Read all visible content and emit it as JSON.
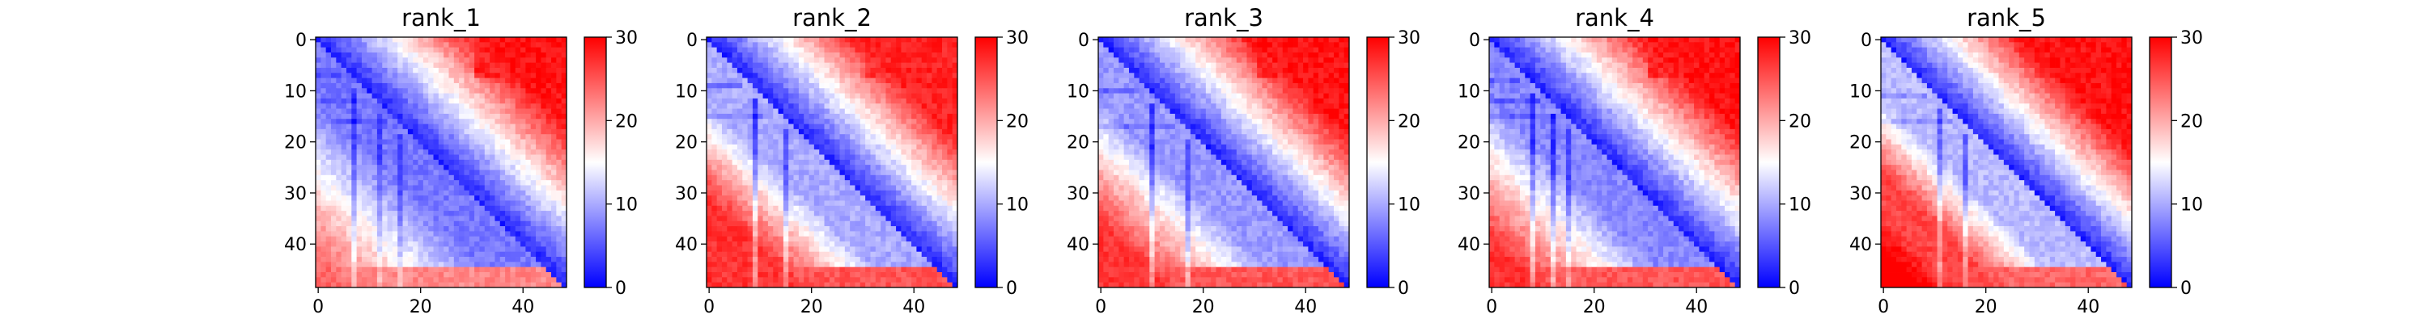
{
  "chart_data": {
    "type": "heatmap",
    "colormap": "bwr",
    "colormap_stops": [
      "#0000ff",
      "#ffffff",
      "#ff0000"
    ],
    "color_range": [
      0,
      30
    ],
    "colorbar_ticks": [
      0,
      10,
      20,
      30
    ],
    "grid": false,
    "matrix_size": 49,
    "x_ticks": [
      0,
      20,
      40
    ],
    "y_ticks": [
      0,
      10,
      20,
      30,
      40
    ],
    "panels": [
      {
        "title": "rank_1",
        "profile": {
          "near_diagonal": 2,
          "band_slope": 0.42,
          "lower_growth": 0.55,
          "lower_floor": 7,
          "upper_growth": 0.85,
          "upper_cap": 29,
          "far_corner": 24,
          "stripes": [
            {
              "index": 7,
              "delta": -4
            },
            {
              "index": 12,
              "delta": -3
            },
            {
              "index": 16,
              "delta": -3
            }
          ]
        }
      },
      {
        "title": "rank_2",
        "profile": {
          "near_diagonal": 2,
          "band_slope": 0.55,
          "lower_growth": 0.9,
          "lower_floor": 10,
          "upper_growth": 0.9,
          "upper_cap": 28,
          "far_corner": 27,
          "stripes": [
            {
              "index": 9,
              "delta": -6
            },
            {
              "index": 15,
              "delta": -5
            }
          ]
        }
      },
      {
        "title": "rank_3",
        "profile": {
          "near_diagonal": 2,
          "band_slope": 0.5,
          "lower_growth": 0.75,
          "lower_floor": 9,
          "upper_growth": 0.9,
          "upper_cap": 29,
          "far_corner": 27,
          "stripes": [
            {
              "index": 10,
              "delta": -6
            },
            {
              "index": 17,
              "delta": -5
            }
          ]
        }
      },
      {
        "title": "rank_4",
        "profile": {
          "near_diagonal": 2,
          "band_slope": 0.45,
          "lower_growth": 0.7,
          "lower_floor": 8,
          "upper_growth": 0.88,
          "upper_cap": 29,
          "far_corner": 27,
          "stripes": [
            {
              "index": 8,
              "delta": -5
            },
            {
              "index": 12,
              "delta": -5
            },
            {
              "index": 15,
              "delta": -4
            }
          ]
        }
      },
      {
        "title": "rank_5",
        "profile": {
          "near_diagonal": 2,
          "band_slope": 0.7,
          "lower_growth": 1.05,
          "lower_floor": 11,
          "upper_growth": 1.0,
          "upper_cap": 29,
          "far_corner": 26,
          "stripes": [
            {
              "index": 11,
              "delta": -5
            },
            {
              "index": 16,
              "delta": -5
            }
          ]
        }
      }
    ]
  }
}
